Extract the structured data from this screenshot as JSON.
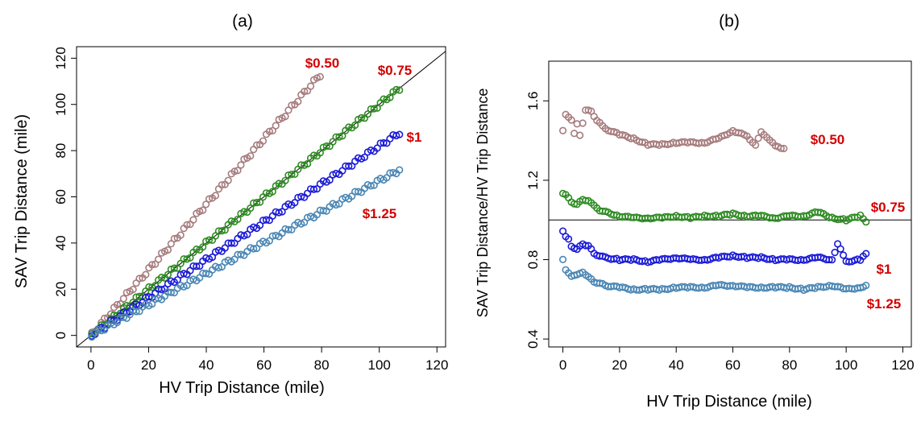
{
  "colors": {
    "s050": "#a67b7d",
    "s075": "#2e8b22",
    "s1": "#1a1ad6",
    "s125": "#4a86b4",
    "label": "#d40000",
    "axis": "#000000"
  },
  "chart_data": [
    {
      "panel": "(a)",
      "type": "scatter",
      "title": "(a)",
      "xlabel": "HV Trip Distance (mile)",
      "ylabel": "SAV Trip Distance (mile)",
      "xlim": [
        -5,
        123
      ],
      "ylim": [
        -5,
        125
      ],
      "xticks": [
        "0",
        "20",
        "40",
        "60",
        "80",
        "100",
        "120"
      ],
      "yticks": [
        "0",
        "20",
        "40",
        "60",
        "80",
        "100",
        "120"
      ],
      "reference_line": {
        "type": "diagonal",
        "slope": 1,
        "intercept": 0
      },
      "grid": false,
      "series": [
        {
          "name": "$0.50",
          "color_key": "s050",
          "slope": 1.42,
          "x_max": 80
        },
        {
          "name": "$0.75",
          "color_key": "s075",
          "slope": 1.0,
          "x_max": 107
        },
        {
          "name": "$1",
          "color_key": "s1",
          "slope": 0.82,
          "x_max": 107
        },
        {
          "name": "$1.25",
          "color_key": "s125",
          "slope": 0.67,
          "x_max": 107
        }
      ]
    },
    {
      "panel": "(b)",
      "type": "scatter",
      "title": "(b)",
      "xlabel": "HV Trip Distance (mile)",
      "ylabel": "SAV Trip Distance/HV Trip Distance",
      "xlim": [
        -5,
        123
      ],
      "ylim": [
        0.36,
        1.8
      ],
      "xticks": [
        "0",
        "20",
        "40",
        "60",
        "80",
        "100",
        "120"
      ],
      "yticks": [
        "0.4",
        "0.8",
        "1.2",
        "1.6"
      ],
      "reference_line": {
        "type": "horizontal",
        "y": 1.0
      },
      "grid": false,
      "series": [
        {
          "name": "$0.50",
          "color_key": "s050",
          "x": [
            0,
            1,
            2,
            3,
            4,
            5,
            6,
            8,
            10,
            12,
            15,
            20,
            25,
            30,
            35,
            40,
            45,
            50,
            55,
            60,
            62,
            65,
            68,
            70,
            72,
            75,
            78
          ],
          "y": [
            1.45,
            1.53,
            1.52,
            1.5,
            1.44,
            1.48,
            1.43,
            1.55,
            1.55,
            1.5,
            1.46,
            1.43,
            1.41,
            1.38,
            1.38,
            1.39,
            1.39,
            1.39,
            1.41,
            1.45,
            1.44,
            1.42,
            1.38,
            1.44,
            1.42,
            1.37,
            1.36
          ]
        },
        {
          "name": "$0.75",
          "color_key": "s075",
          "x": [
            0,
            1,
            2,
            3,
            5,
            7,
            9,
            11,
            13,
            15,
            20,
            25,
            30,
            35,
            40,
            45,
            50,
            55,
            60,
            65,
            70,
            75,
            80,
            85,
            90,
            95,
            100,
            105,
            107
          ],
          "y": [
            1.13,
            1.13,
            1.11,
            1.09,
            1.08,
            1.1,
            1.1,
            1.07,
            1.05,
            1.04,
            1.02,
            1.01,
            1.01,
            1.01,
            1.02,
            1.01,
            1.02,
            1.02,
            1.03,
            1.02,
            1.02,
            1.01,
            1.02,
            1.02,
            1.04,
            1.01,
            1.0,
            1.02,
            0.99
          ]
        },
        {
          "name": "$1",
          "color_key": "s1",
          "x": [
            0,
            1,
            2,
            3,
            5,
            7,
            9,
            11,
            13,
            15,
            20,
            25,
            30,
            35,
            40,
            45,
            50,
            55,
            60,
            65,
            70,
            75,
            80,
            85,
            90,
            95,
            97,
            100,
            105,
            107
          ],
          "y": [
            0.94,
            0.92,
            0.9,
            0.87,
            0.85,
            0.88,
            0.87,
            0.83,
            0.82,
            0.81,
            0.8,
            0.8,
            0.79,
            0.8,
            0.81,
            0.8,
            0.8,
            0.81,
            0.82,
            0.81,
            0.81,
            0.8,
            0.8,
            0.8,
            0.81,
            0.8,
            0.88,
            0.79,
            0.8,
            0.83
          ]
        },
        {
          "name": "$1.25",
          "color_key": "s125",
          "x": [
            0,
            1,
            2,
            3,
            5,
            7,
            9,
            11,
            13,
            15,
            20,
            25,
            30,
            35,
            40,
            45,
            50,
            55,
            60,
            65,
            70,
            75,
            80,
            85,
            90,
            95,
            100,
            105,
            107
          ],
          "y": [
            0.8,
            0.75,
            0.73,
            0.72,
            0.72,
            0.74,
            0.71,
            0.69,
            0.68,
            0.67,
            0.66,
            0.65,
            0.65,
            0.65,
            0.66,
            0.66,
            0.66,
            0.67,
            0.67,
            0.66,
            0.66,
            0.66,
            0.66,
            0.65,
            0.66,
            0.67,
            0.65,
            0.66,
            0.67
          ]
        }
      ]
    }
  ],
  "labels_a": [
    "$0.50",
    "$0.75",
    "$1",
    "$1.25"
  ],
  "labels_b": [
    "$0.50",
    "$0.75",
    "$1",
    "$1.25"
  ]
}
